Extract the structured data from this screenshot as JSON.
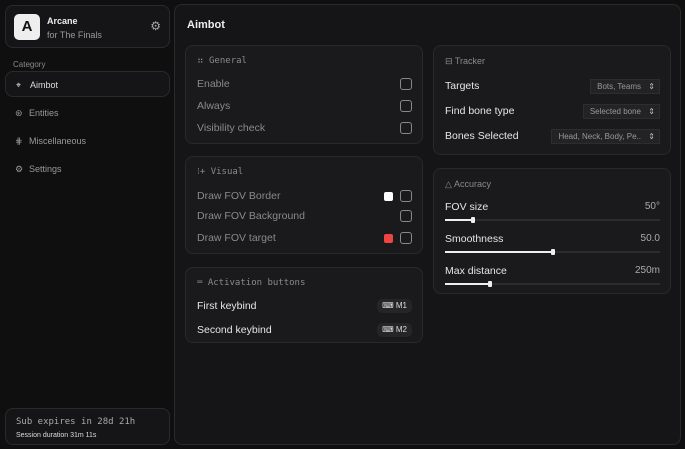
{
  "app": {
    "name": "Arcane",
    "subtitle": "for The Finals",
    "logo_letter": "A"
  },
  "sidebar": {
    "category_label": "Category",
    "items": [
      {
        "label": "Aimbot",
        "icon": "crosshair-icon",
        "active": true
      },
      {
        "label": "Entities",
        "icon": "entity-icon"
      },
      {
        "label": "Miscellaneous",
        "icon": "misc-icon"
      },
      {
        "label": "Settings",
        "icon": "gear-icon"
      }
    ],
    "subscription": "Sub expires in 28d 21h",
    "session": "Session duration 31m 11s"
  },
  "page": {
    "title": "Aimbot"
  },
  "general": {
    "title": "General",
    "rows": [
      {
        "label": "Enable",
        "checked": false
      },
      {
        "label": "Always",
        "checked": false
      },
      {
        "label": "Visibility check",
        "checked": false
      }
    ]
  },
  "visual": {
    "title": "Visual",
    "rows": [
      {
        "label": "Draw FOV Border",
        "color": "#ffffff",
        "checked": false
      },
      {
        "label": "Draw FOV Background",
        "checked": false
      },
      {
        "label": "Draw FOV target",
        "color": "#ef4444",
        "checked": false
      }
    ]
  },
  "activation": {
    "title": "Activation buttons",
    "rows": [
      {
        "label": "First keybind",
        "key": "M1"
      },
      {
        "label": "Second keybind",
        "key": "M2"
      }
    ]
  },
  "tracker": {
    "title": "Tracker",
    "rows": [
      {
        "label": "Targets",
        "value": "Bots, Teams"
      },
      {
        "label": "Find bone type",
        "value": "Selected bone"
      },
      {
        "label": "Bones Selected",
        "value": "Head, Neck, Body, Pe.."
      }
    ]
  },
  "accuracy": {
    "title": "Accuracy",
    "sliders": [
      {
        "label": "FOV size",
        "value": "50°",
        "fraction": 0.13
      },
      {
        "label": "Smoothness",
        "value": "50.0",
        "fraction": 0.5
      },
      {
        "label": "Max distance",
        "value": "250m",
        "fraction": 0.21
      }
    ]
  }
}
